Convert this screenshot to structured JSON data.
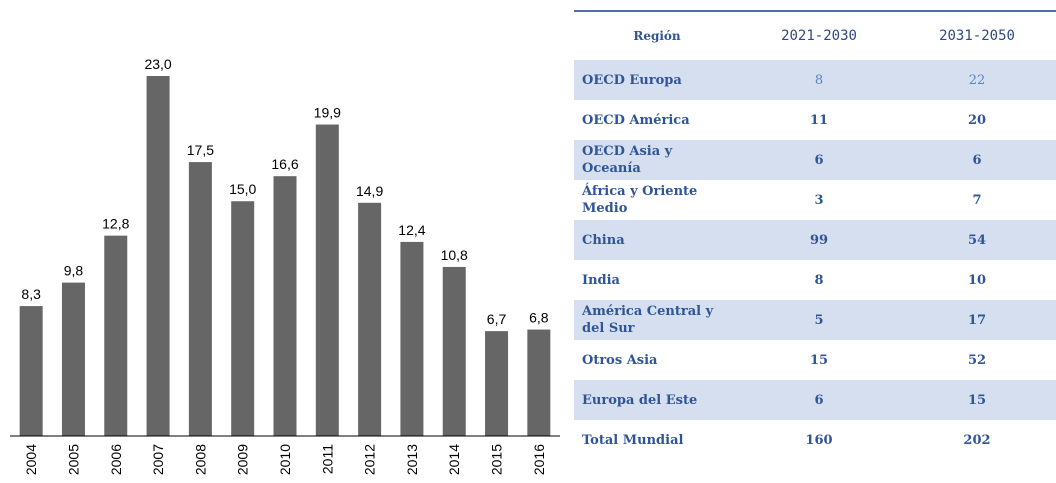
{
  "chart_data": {
    "type": "bar",
    "categories": [
      "2004",
      "2005",
      "2006",
      "2007",
      "2008",
      "2009",
      "2010",
      "2011",
      "2012",
      "2013",
      "2014",
      "2015",
      "2016"
    ],
    "values": [
      8.3,
      9.8,
      12.8,
      23.0,
      17.5,
      15.0,
      16.6,
      19.9,
      14.9,
      12.4,
      10.8,
      6.7,
      6.8
    ],
    "value_labels": [
      "8,3",
      "9,8",
      "12,8",
      "23,0",
      "17,5",
      "15,0",
      "16,6",
      "19,9",
      "14,9",
      "12,4",
      "10,8",
      "6,7",
      "6,8"
    ],
    "color": "#666666"
  },
  "table": {
    "header": [
      "Región",
      "2021-2030",
      "2031-2050"
    ],
    "rows": [
      [
        "OECD Europa",
        8,
        22
      ],
      [
        "OECD América",
        11,
        20
      ],
      [
        "OECD Asia y Oceanía",
        6,
        6
      ],
      [
        "África y Oriente Medio",
        3,
        7
      ],
      [
        "China",
        99,
        54
      ],
      [
        "India",
        8,
        10
      ],
      [
        "América Central y del Sur",
        5,
        17
      ],
      [
        "Otros Asia",
        15,
        52
      ],
      [
        "Europa del Este",
        6,
        15
      ],
      [
        "Total Mundial",
        160,
        202
      ]
    ]
  }
}
